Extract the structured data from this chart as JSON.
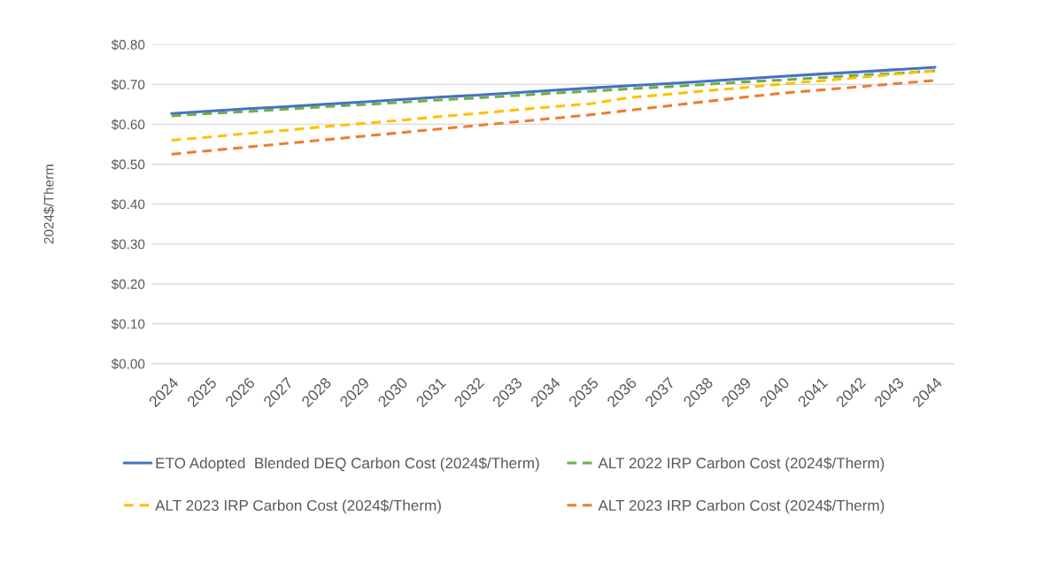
{
  "chart_data": {
    "type": "line",
    "ylabel": "2024$/Therm",
    "categories": [
      "2024",
      "2025",
      "2026",
      "2027",
      "2028",
      "2029",
      "2030",
      "2031",
      "2032",
      "2033",
      "2034",
      "2035",
      "2036",
      "2037",
      "2038",
      "2039",
      "2040",
      "2041",
      "2042",
      "2043",
      "2044"
    ],
    "series": [
      {
        "name": "ETO Adopted  Blended DEQ Carbon Cost (2024$/Therm)",
        "color": "#4472c4",
        "line_style": "solid",
        "values": [
          0.627,
          0.633,
          0.639,
          0.644,
          0.65,
          0.656,
          0.662,
          0.668,
          0.673,
          0.679,
          0.685,
          0.691,
          0.697,
          0.702,
          0.708,
          0.714,
          0.72,
          0.726,
          0.731,
          0.737,
          0.743
        ]
      },
      {
        "name": "ALT 2022 IRP Carbon Cost (2024$/Therm)",
        "color": "#70ad47",
        "line_style": "dashed",
        "values": [
          0.621,
          0.627,
          0.632,
          0.638,
          0.644,
          0.649,
          0.655,
          0.661,
          0.666,
          0.672,
          0.678,
          0.683,
          0.689,
          0.694,
          0.7,
          0.706,
          0.711,
          0.717,
          0.723,
          0.728,
          0.734
        ]
      },
      {
        "name": "ALT 2023 IRP Carbon Cost (2024$/Therm)",
        "color": "#ffc000",
        "line_style": "dashed",
        "values": [
          0.56,
          0.568,
          0.577,
          0.585,
          0.594,
          0.602,
          0.61,
          0.619,
          0.627,
          0.636,
          0.644,
          0.652,
          0.667,
          0.675,
          0.684,
          0.692,
          0.701,
          0.709,
          0.717,
          0.726,
          0.734
        ]
      },
      {
        "name": "ALT 2023 IRP Carbon Cost (2024$/Therm)",
        "color": "#ed7d31",
        "line_style": "dashed",
        "values": [
          0.525,
          0.534,
          0.543,
          0.552,
          0.561,
          0.57,
          0.579,
          0.588,
          0.597,
          0.606,
          0.615,
          0.624,
          0.635,
          0.646,
          0.657,
          0.668,
          0.678,
          0.686,
          0.694,
          0.702,
          0.71
        ]
      }
    ],
    "ylim": [
      0,
      0.8
    ],
    "yticks": [
      {
        "value": 0,
        "label": "$0.00"
      },
      {
        "value": 0.1,
        "label": "$0.10"
      },
      {
        "value": 0.2,
        "label": "$0.20"
      },
      {
        "value": 0.3,
        "label": "$0.30"
      },
      {
        "value": 0.4,
        "label": "$0.40"
      },
      {
        "value": 0.5,
        "label": "$0.50"
      },
      {
        "value": 0.6,
        "label": "$0.60"
      },
      {
        "value": 0.7,
        "label": "$0.70"
      },
      {
        "value": 0.8,
        "label": "$0.80"
      }
    ],
    "grid": "y",
    "legend": "bottom"
  }
}
